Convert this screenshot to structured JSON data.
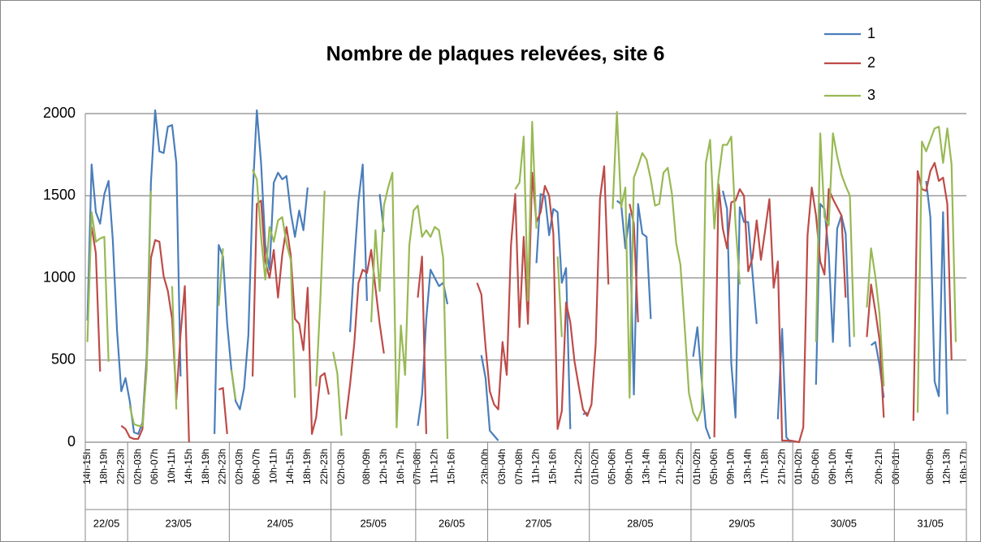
{
  "chart_data": {
    "type": "line",
    "title": "Nombre de plaques relevées, site 6",
    "categories": [
      "14h-15h",
      null,
      null,
      null,
      "18h-19h",
      null,
      null,
      null,
      "22h-23h",
      null,
      null,
      null,
      "02h-03h",
      null,
      null,
      null,
      "06h-07h",
      null,
      null,
      null,
      "10h-11h",
      null,
      null,
      null,
      "14h-15h",
      null,
      null,
      null,
      "18h-19h",
      null,
      null,
      null,
      "22h-23h",
      null,
      null,
      null,
      "02h-03h",
      null,
      null,
      null,
      "06h-07h",
      null,
      null,
      null,
      "10h-11h",
      null,
      null,
      null,
      "14h-15h",
      null,
      null,
      null,
      "18h-19h",
      null,
      null,
      null,
      "22h-23h",
      null,
      null,
      null,
      "02h-03h",
      null,
      null,
      null,
      null,
      null,
      "08h-09h",
      null,
      null,
      null,
      "12h-13h",
      null,
      null,
      null,
      "16h-17h",
      null,
      null,
      null,
      "07h-08h",
      null,
      null,
      null,
      "11h-12h",
      null,
      null,
      null,
      "15h-16h",
      null,
      null,
      null,
      null,
      null,
      null,
      null,
      "23h-00h",
      null,
      null,
      null,
      "03h-04h",
      null,
      null,
      null,
      "07h-08h",
      null,
      null,
      null,
      "11h-12h",
      null,
      null,
      null,
      "15h-16h",
      null,
      null,
      null,
      null,
      null,
      "21h-22h",
      null,
      null,
      null,
      "01h-02h",
      null,
      null,
      null,
      "05h-06h",
      null,
      null,
      null,
      "09h-10h",
      null,
      null,
      null,
      "13h-14h",
      null,
      null,
      null,
      "17h-18h",
      null,
      null,
      null,
      "21h-22h",
      null,
      null,
      null,
      "01h-02h",
      null,
      null,
      null,
      "05h-06h",
      null,
      null,
      null,
      "09h-10h",
      null,
      null,
      null,
      "13h-14h",
      null,
      null,
      null,
      "17h-18h",
      null,
      null,
      null,
      "21h-22h",
      null,
      null,
      null,
      "01h-02h",
      null,
      null,
      null,
      "05h-06h",
      null,
      null,
      null,
      "09h-10h",
      null,
      null,
      null,
      "13h-14h",
      null,
      null,
      null,
      null,
      null,
      null,
      "20h-21h",
      null,
      null,
      null,
      "00h-01h",
      null,
      null,
      null,
      null,
      null,
      null,
      null,
      "08h-09h",
      null,
      null,
      null,
      "12h-13h",
      null,
      null,
      null,
      "16h-17h"
    ],
    "groups": [
      {
        "label": "22/05",
        "count": 10
      },
      {
        "label": "23/05",
        "count": 24
      },
      {
        "label": "24/05",
        "count": 24
      },
      {
        "label": "25/05",
        "count": 20
      },
      {
        "label": "26/05",
        "count": 17
      },
      {
        "label": "27/05",
        "count": 24
      },
      {
        "label": "28/05",
        "count": 24
      },
      {
        "label": "29/05",
        "count": 24
      },
      {
        "label": "30/05",
        "count": 24
      },
      {
        "label": "31/05",
        "count": 17
      }
    ],
    "series": [
      {
        "name": "1",
        "color": "#4a7ebb",
        "values": [
          740,
          1690,
          1400,
          1330,
          1510,
          1590,
          1230,
          680,
          310,
          390,
          250,
          60,
          50,
          120,
          520,
          1580,
          2020,
          1770,
          1760,
          1920,
          1930,
          1700,
          400,
          null,
          null,
          null,
          null,
          null,
          null,
          null,
          50,
          1200,
          1130,
          720,
          440,
          250,
          200,
          330,
          650,
          1500,
          2020,
          1700,
          1200,
          1050,
          1580,
          1640,
          1600,
          1620,
          1400,
          1250,
          1410,
          1290,
          1550,
          null,
          null,
          null,
          null,
          null,
          null,
          null,
          null,
          null,
          670,
          1100,
          1470,
          1690,
          860,
          null,
          null,
          1510,
          1280,
          null,
          null,
          null,
          null,
          null,
          null,
          null,
          100,
          290,
          750,
          1050,
          1000,
          950,
          970,
          840,
          null,
          null,
          null,
          null,
          null,
          null,
          null,
          530,
          390,
          70,
          40,
          10,
          null,
          null,
          null,
          null,
          null,
          null,
          null,
          null,
          1090,
          1510,
          1500,
          1260,
          1420,
          1400,
          970,
          1060,
          80,
          null,
          null,
          170,
          180,
          null,
          null,
          null,
          null,
          null,
          null,
          1470,
          1450,
          1180,
          1390,
          290,
          1450,
          1270,
          1250,
          750,
          null,
          null,
          null,
          null,
          null,
          null,
          null,
          null,
          null,
          520,
          700,
          380,
          90,
          20,
          null,
          null,
          1530,
          1420,
          480,
          150,
          1430,
          1340,
          1340,
          1030,
          720,
          null,
          null,
          null,
          null,
          140,
          690,
          30,
          0,
          null,
          null,
          null,
          null,
          null,
          350,
          1450,
          1420,
          1150,
          610,
          1300,
          1380,
          1270,
          580,
          null,
          null,
          null,
          null,
          590,
          610,
          470,
          270,
          null,
          null,
          null,
          null,
          null,
          null,
          null,
          null,
          null,
          1590,
          1370,
          370,
          280,
          1400,
          170,
          null,
          null,
          null,
          null
        ]
      },
      {
        "name": "2",
        "color": "#be4b48",
        "values": [
          null,
          1310,
          1150,
          430,
          null,
          null,
          null,
          null,
          100,
          80,
          30,
          20,
          20,
          80,
          480,
          1120,
          1230,
          1220,
          1010,
          920,
          750,
          260,
          660,
          950,
          0,
          null,
          null,
          null,
          null,
          null,
          null,
          320,
          330,
          50,
          null,
          null,
          null,
          null,
          null,
          400,
          1450,
          1470,
          1100,
          1000,
          1170,
          880,
          1140,
          1310,
          1140,
          750,
          720,
          560,
          940,
          50,
          150,
          400,
          420,
          290,
          null,
          null,
          null,
          140,
          350,
          600,
          970,
          1050,
          1030,
          1170,
          940,
          720,
          540,
          null,
          null,
          null,
          null,
          null,
          null,
          null,
          880,
          1130,
          50,
          null,
          null,
          null,
          null,
          null,
          null,
          null,
          null,
          null,
          null,
          null,
          970,
          900,
          580,
          310,
          230,
          200,
          610,
          410,
          1200,
          1510,
          700,
          1250,
          720,
          1640,
          1340,
          1400,
          1560,
          1500,
          1270,
          80,
          190,
          850,
          730,
          490,
          340,
          200,
          160,
          230,
          600,
          1480,
          1680,
          960,
          null,
          null,
          null,
          null,
          1450,
          1330,
          730,
          null,
          null,
          null,
          null,
          null,
          null,
          null,
          null,
          null,
          null,
          null,
          null,
          null,
          null,
          null,
          null,
          null,
          30,
          1570,
          1300,
          1180,
          1460,
          1470,
          1540,
          1500,
          1040,
          1120,
          1350,
          1110,
          1290,
          1480,
          940,
          1100,
          10,
          10,
          10,
          5,
          0,
          90,
          1260,
          1550,
          1380,
          1100,
          1020,
          1540,
          1480,
          1430,
          1380,
          880,
          null,
          null,
          null,
          null,
          640,
          960,
          800,
          620,
          150,
          null,
          null,
          null,
          null,
          null,
          null,
          130,
          1650,
          1540,
          1530,
          1650,
          1700,
          1590,
          1610,
          1450,
          500,
          null,
          null,
          null
        ]
      },
      {
        "name": "3",
        "color": "#98b954",
        "values": [
          610,
          1400,
          1220,
          1240,
          1250,
          490,
          null,
          null,
          null,
          null,
          220,
          110,
          100,
          100,
          440,
          1530,
          null,
          null,
          null,
          null,
          950,
          200,
          null,
          null,
          null,
          null,
          null,
          null,
          null,
          null,
          null,
          830,
          1180,
          null,
          440,
          260,
          null,
          null,
          null,
          1660,
          1600,
          1250,
          990,
          1310,
          1220,
          1350,
          1370,
          1210,
          1110,
          270,
          null,
          null,
          null,
          null,
          340,
          870,
          1530,
          null,
          550,
          420,
          40,
          null,
          null,
          null,
          null,
          1560,
          null,
          730,
          1290,
          920,
          1440,
          1550,
          1640,
          90,
          710,
          410,
          1200,
          1410,
          1440,
          1250,
          1290,
          1250,
          1310,
          1290,
          1120,
          20,
          null,
          null,
          null,
          null,
          null,
          null,
          null,
          null,
          null,
          null,
          null,
          null,
          null,
          null,
          null,
          1540,
          1580,
          1860,
          860,
          1950,
          1300,
          null,
          null,
          null,
          null,
          1130,
          640,
          null,
          null,
          null,
          null,
          null,
          null,
          null,
          null,
          null,
          null,
          null,
          1420,
          2010,
          1430,
          1550,
          270,
          1610,
          1680,
          1760,
          1720,
          1600,
          1440,
          1450,
          1640,
          1670,
          1510,
          1210,
          1080,
          700,
          300,
          180,
          130,
          200,
          1700,
          1840,
          1300,
          1610,
          1810,
          1810,
          1860,
          1330,
          960,
          null,
          null,
          null,
          null,
          null,
          null,
          null,
          null,
          null,
          1350,
          null,
          null,
          null,
          null,
          null,
          null,
          null,
          610,
          1880,
          1370,
          1320,
          1880,
          1740,
          1630,
          1560,
          1500,
          640,
          null,
          null,
          820,
          1180,
          1010,
          780,
          340,
          null,
          null,
          null,
          null,
          null,
          null,
          null,
          180,
          1830,
          1770,
          1840,
          1910,
          1920,
          1700,
          1910,
          1690,
          610,
          null,
          null
        ]
      }
    ],
    "ylim": [
      0,
      2000
    ],
    "yticks": [
      0,
      500,
      1000,
      1500,
      2000
    ],
    "grid": true,
    "legend": "top-right"
  }
}
